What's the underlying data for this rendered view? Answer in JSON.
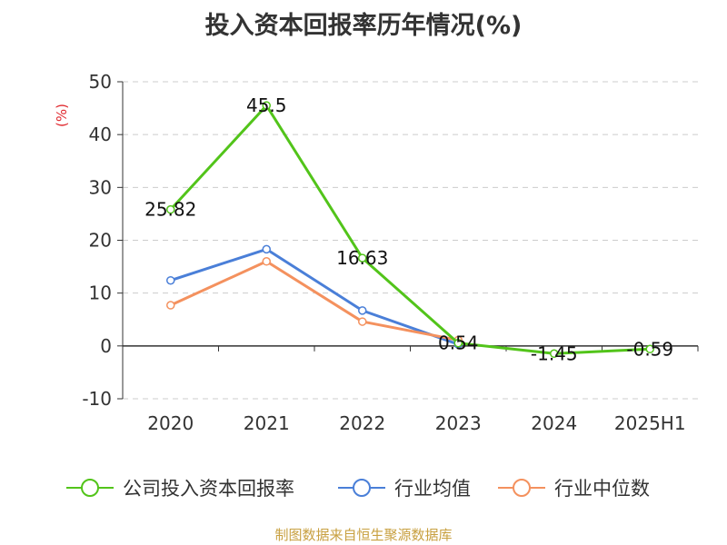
{
  "chart_data": {
    "type": "line",
    "title": "投入资本回报率历年情况(%)",
    "ylabel": "(%)",
    "xlabel": "",
    "categories": [
      "2020",
      "2021",
      "2022",
      "2023",
      "2024",
      "2025H1"
    ],
    "ylim": [
      -10,
      50
    ],
    "yticks": [
      -10,
      0,
      10,
      20,
      30,
      40,
      50
    ],
    "grid": true,
    "legend_position": "bottom",
    "series": [
      {
        "name": "公司投入资本回报率",
        "color": "#52c41a",
        "values": [
          25.82,
          45.5,
          16.63,
          0.54,
          -1.45,
          -0.59
        ],
        "labels": [
          "25.82",
          "45.5",
          "16.63",
          "0.54",
          "-1.45",
          "-0.59"
        ]
      },
      {
        "name": "行业均值",
        "color": "#4a7fd8",
        "values": [
          12.4,
          18.3,
          6.7,
          0.3,
          null,
          null
        ]
      },
      {
        "name": "行业中位数",
        "color": "#f4915e",
        "values": [
          7.7,
          16.0,
          4.6,
          1.1,
          null,
          null
        ]
      }
    ]
  },
  "source": "制图数据来自恒生聚源数据库"
}
